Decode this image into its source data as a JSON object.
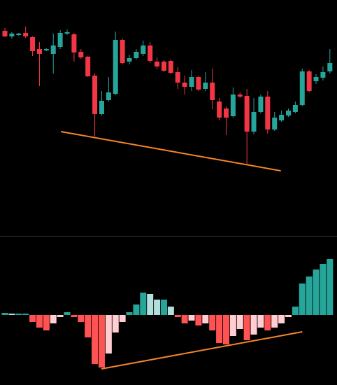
{
  "chart_data": [
    {
      "type": "candlestick",
      "up_color": "#26a69a",
      "down_color": "#f23645",
      "ylim": [
        0,
        340
      ],
      "open": [
        296,
        288,
        290,
        293,
        287,
        270,
        268,
        263,
        273,
        292,
        291,
        266,
        259,
        232,
        177,
        197,
        206,
        283,
        252,
        257,
        263,
        275,
        252,
        252,
        253,
        237,
        222,
        216,
        230,
        213,
        222,
        195,
        185,
        174,
        205,
        203,
        152,
        180,
        202,
        155,
        168,
        175,
        180,
        190,
        238,
        224,
        229,
        238
      ],
      "high": [
        300,
        294,
        293,
        302,
        288,
        280,
        271,
        292,
        297,
        298,
        293,
        270,
        260,
        235,
        210,
        230,
        295,
        285,
        262,
        270,
        282,
        280,
        258,
        254,
        255,
        244,
        232,
        240,
        232,
        237,
        242,
        200,
        188,
        215,
        208,
        213,
        200,
        205,
        210,
        180,
        182,
        185,
        195,
        242,
        240,
        234,
        245,
        270
      ],
      "low": [
        287,
        285,
        289,
        286,
        260,
        217,
        267,
        235,
        270,
        290,
        252,
        256,
        230,
        145,
        175,
        195,
        204,
        248,
        248,
        255,
        260,
        250,
        241,
        237,
        234,
        213,
        205,
        210,
        210,
        210,
        184,
        168,
        147,
        172,
        200,
        105,
        148,
        178,
        149,
        153,
        166,
        173,
        178,
        188,
        208,
        220,
        225,
        235
      ],
      "close": [
        288,
        292,
        292,
        288,
        267,
        263,
        270,
        275,
        293,
        294,
        265,
        258,
        231,
        177,
        196,
        208,
        283,
        250,
        257,
        266,
        275,
        253,
        245,
        239,
        236,
        222,
        216,
        230,
        212,
        222,
        197,
        172,
        172,
        205,
        202,
        152,
        180,
        202,
        155,
        172,
        176,
        182,
        190,
        238,
        210,
        230,
        237,
        250
      ],
      "trend_line": {
        "color": "#f5862a",
        "x": [
          8.1,
          39.9
        ],
        "y": [
          152,
          96
        ]
      }
    },
    {
      "type": "histogram_bars",
      "colors": {
        "up_grow": "#26a69a",
        "up_fall": "#b2dfdb",
        "down_grow": "#ff5252",
        "down_fall": "#ffcdd2"
      },
      "ylim": [
        -100,
        112
      ],
      "values": [
        3,
        2,
        2,
        2,
        -10,
        -18,
        -22,
        -12,
        -3,
        4,
        -3,
        -10,
        -32,
        -70,
        -75,
        -55,
        -25,
        -10,
        4,
        15,
        32,
        30,
        22,
        22,
        12,
        -3,
        -12,
        -8,
        -15,
        -12,
        -22,
        -40,
        -42,
        -30,
        -20,
        -36,
        -28,
        -18,
        -22,
        -18,
        -12,
        -3,
        12,
        45,
        55,
        65,
        73,
        80
      ],
      "trend_line": {
        "color": "#f5862a",
        "x": [
          13.95,
          43.0
        ],
        "y": [
          -77,
          -24
        ]
      }
    }
  ]
}
